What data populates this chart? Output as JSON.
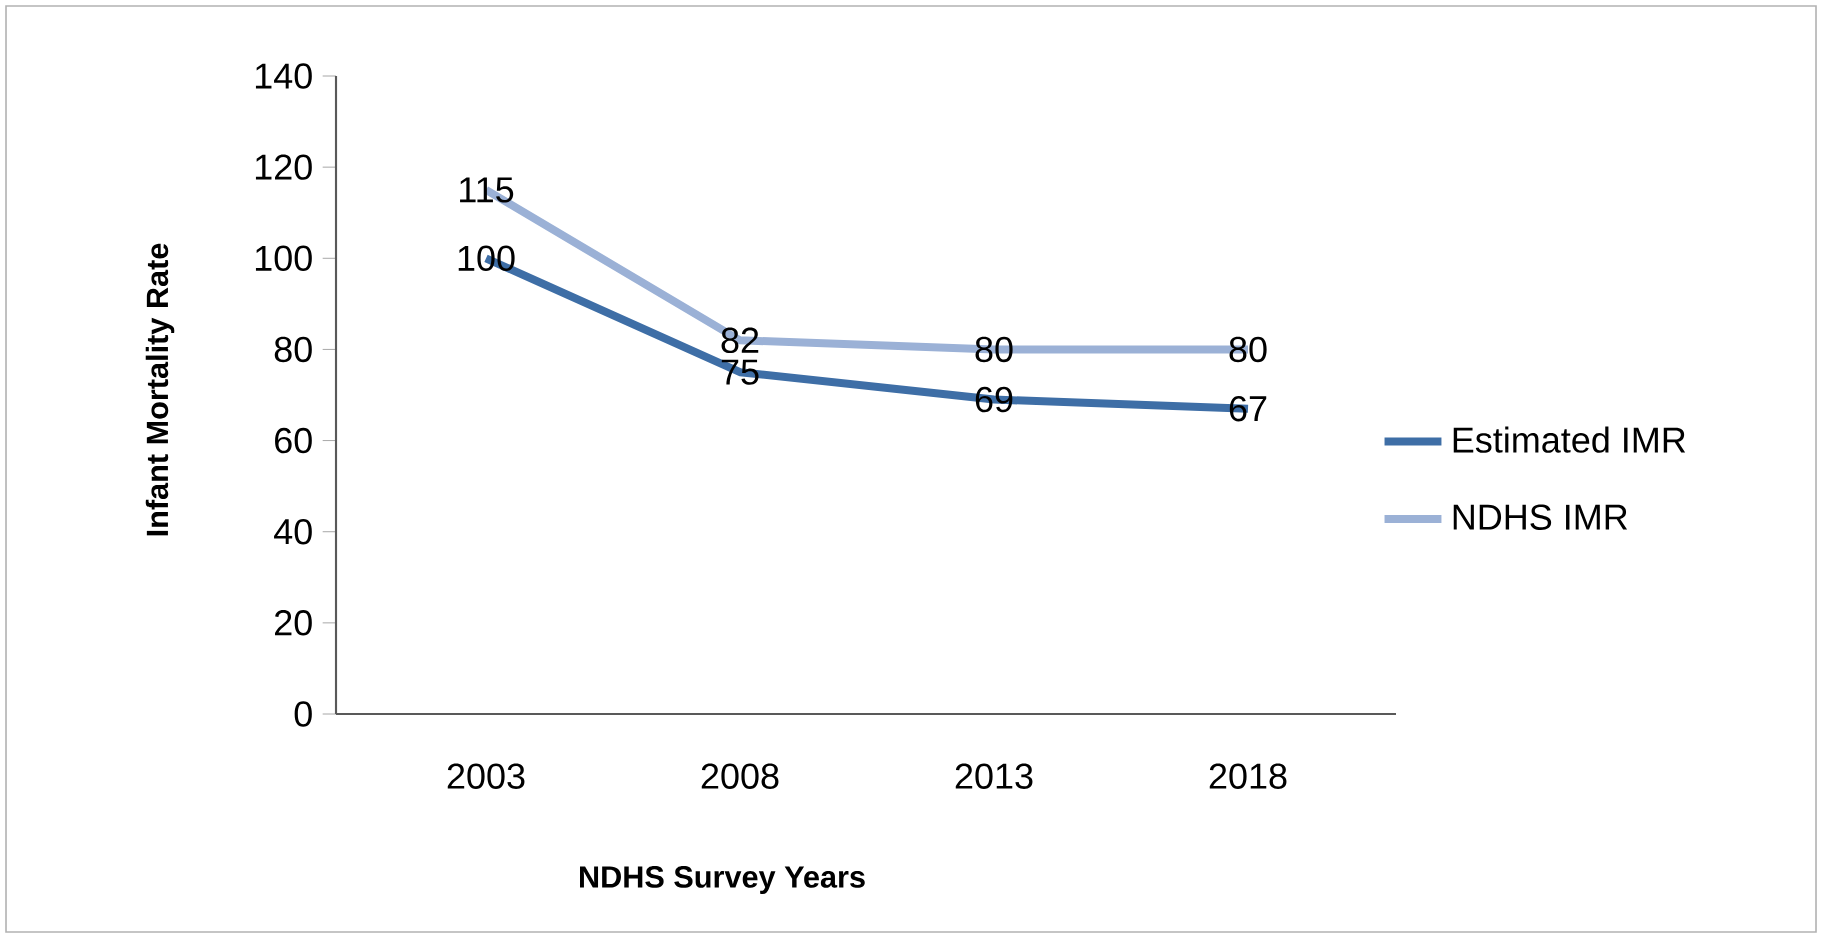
{
  "chart_data": {
    "type": "line",
    "xlabel": "NDHS Survey Years",
    "ylabel": "Infant Mortality Rate",
    "categories": [
      "2003",
      "2008",
      "2013",
      "2018"
    ],
    "series": [
      {
        "name": "Estimated IMR",
        "color": "#3e6ea6",
        "values": [
          100,
          75,
          69,
          67
        ]
      },
      {
        "name": "NDHS IMR",
        "color": "#9bb1d6",
        "values": [
          115,
          82,
          80,
          80
        ]
      }
    ],
    "ylim": [
      0,
      140
    ],
    "yticks": [
      0,
      20,
      40,
      60,
      80,
      100,
      120,
      140
    ],
    "data_labels": true,
    "legend": "right",
    "grid": false,
    "marker": "none",
    "line_style": "solid"
  }
}
